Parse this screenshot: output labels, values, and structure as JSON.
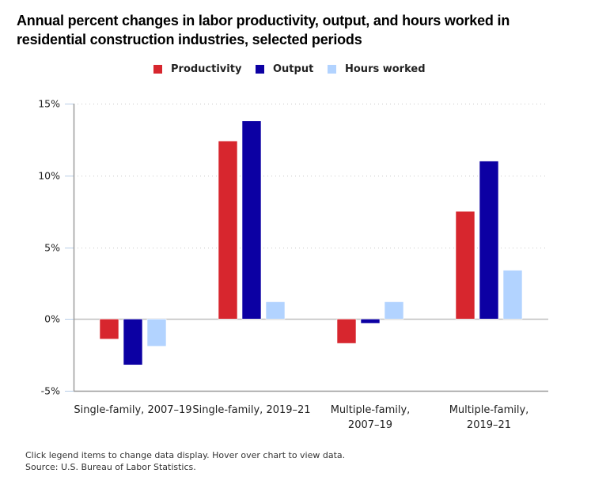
{
  "chart_data": {
    "type": "bar",
    "title": "Annual percent changes in labor productivity, output, and hours worked in residential construction industries, selected periods",
    "xlabel": "",
    "ylabel": "",
    "ylim": [
      -5,
      15
    ],
    "yticks": [
      -5,
      0,
      5,
      10,
      15
    ],
    "ytick_labels": [
      "-5%",
      "0%",
      "5%",
      "10%",
      "15%"
    ],
    "grid": true,
    "legend_position": "top-center",
    "categories": [
      [
        "Single-family, 2007–19"
      ],
      [
        "Single-family, 2019–21"
      ],
      [
        "Multiple-family,",
        "2007–19"
      ],
      [
        "Multiple-family,",
        "2019–21"
      ]
    ],
    "series": [
      {
        "name": "Productivity",
        "color": "#d7262e",
        "values": [
          -1.4,
          12.4,
          -1.7,
          7.5
        ]
      },
      {
        "name": "Output",
        "color": "#0c00a3",
        "values": [
          -3.2,
          13.8,
          -0.3,
          11.0
        ]
      },
      {
        "name": "Hours worked",
        "color": "#b2d3ff",
        "values": [
          -1.9,
          1.2,
          1.2,
          3.4
        ]
      }
    ]
  },
  "legend": {
    "items": [
      {
        "label": "Productivity",
        "color": "#d7262e"
      },
      {
        "label": "Output",
        "color": "#0c00a3"
      },
      {
        "label": "Hours worked",
        "color": "#b2d3ff"
      }
    ]
  },
  "footnote": {
    "line1": "Click legend items to change data display. Hover over chart to view data.",
    "line2": "Source: U.S. Bureau of Labor Statistics."
  }
}
